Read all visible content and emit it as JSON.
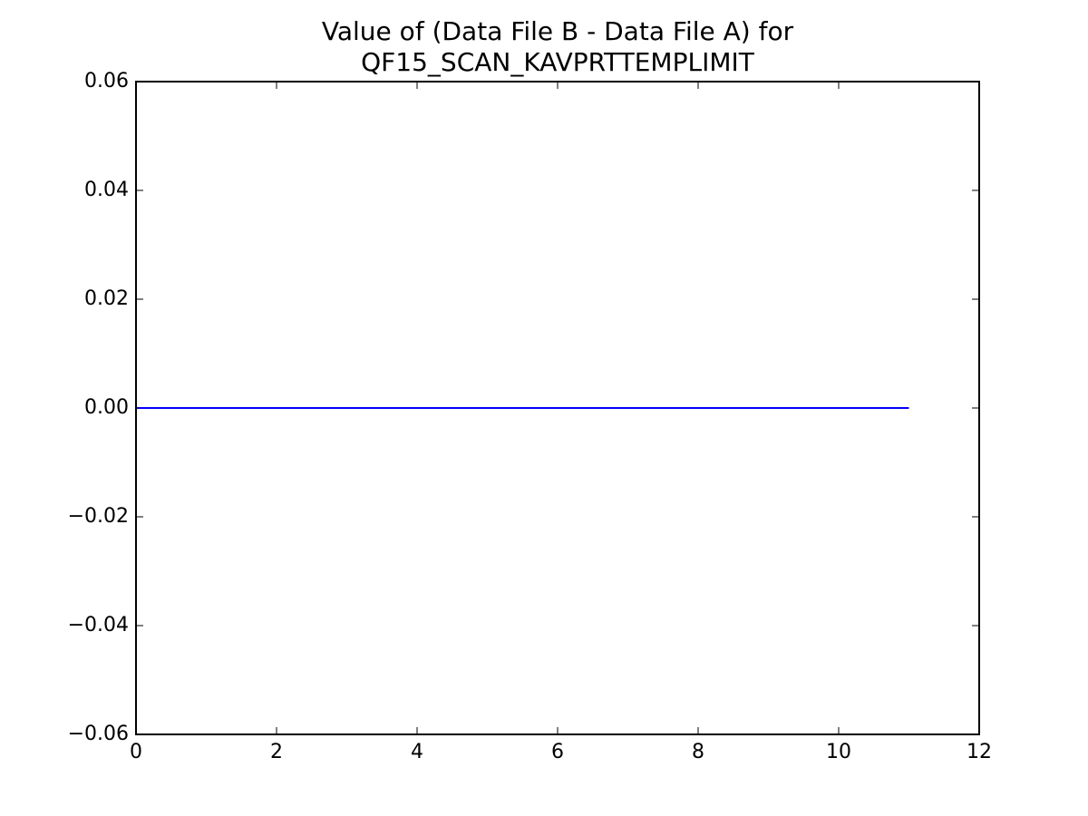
{
  "chart_data": {
    "type": "line",
    "title": [
      "Value of (Data File B - Data File A) for",
      "QF15_SCAN_KAVPRTTEMPLIMIT"
    ],
    "x": [
      0,
      1,
      2,
      3,
      4,
      5,
      6,
      7,
      8,
      9,
      10,
      11
    ],
    "series": [
      {
        "color": "#0000ff",
        "values": [
          0,
          0,
          0,
          0,
          0,
          0,
          0,
          0,
          0,
          0,
          0,
          0
        ]
      }
    ],
    "xlim": [
      0,
      12
    ],
    "xticks": [
      0,
      2,
      4,
      6,
      8,
      10,
      12
    ],
    "ylim": [
      -0.06,
      0.06
    ],
    "yticks": [
      {
        "value": -0.06,
        "label": "−0.06"
      },
      {
        "value": -0.04,
        "label": "−0.04"
      },
      {
        "value": -0.02,
        "label": "−0.02"
      },
      {
        "value": 0,
        "label": "0.00"
      },
      {
        "value": 0.02,
        "label": "0.02"
      },
      {
        "value": 0.04,
        "label": "0.04"
      },
      {
        "value": 0.06,
        "label": "0.06"
      }
    ],
    "grid": false
  }
}
